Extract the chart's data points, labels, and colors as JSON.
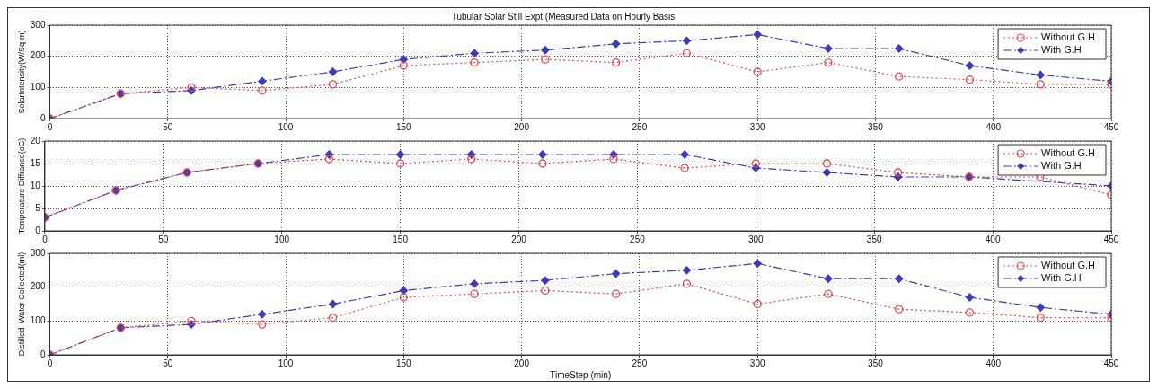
{
  "chart_data": [
    {
      "type": "line",
      "title": "Tubular Solar Still Expt.(Measured Data on Hourly Basis",
      "ylabel": "SolarIntensity(W/Sq-m)",
      "x": [
        0,
        30,
        60,
        90,
        120,
        150,
        180,
        210,
        240,
        270,
        300,
        330,
        360,
        390,
        420,
        450
      ],
      "xlim": [
        0,
        450
      ],
      "xticks": [
        0,
        50,
        100,
        150,
        200,
        250,
        300,
        350,
        400,
        450
      ],
      "ylim": [
        0,
        300
      ],
      "yticks": [
        0,
        100,
        200,
        300
      ],
      "grid": true,
      "legend": "top right",
      "series": [
        {
          "name": "Without G.H",
          "color": "#e8474a",
          "marker": "circle",
          "line_style": "dotted",
          "values": [
            0,
            80,
            100,
            90,
            110,
            170,
            180,
            190,
            180,
            210,
            150,
            180,
            135,
            125,
            110,
            110
          ]
        },
        {
          "name": "With G.H",
          "color": "#3c3cb4",
          "marker": "diamond",
          "line_style": "dashed",
          "values": [
            0,
            80,
            90,
            120,
            150,
            190,
            210,
            220,
            240,
            250,
            270,
            225,
            225,
            170,
            140,
            120
          ]
        }
      ]
    },
    {
      "type": "line",
      "ylabel": "Temperature Diffrance(oC)",
      "x": [
        0,
        30,
        60,
        90,
        120,
        150,
        180,
        210,
        240,
        270,
        300,
        330,
        360,
        390,
        420,
        450
      ],
      "xlim": [
        0,
        450
      ],
      "xticks": [
        0,
        50,
        100,
        150,
        200,
        250,
        300,
        350,
        400,
        450
      ],
      "ylim": [
        0,
        20
      ],
      "yticks": [
        0,
        5,
        10,
        15,
        20
      ],
      "grid": true,
      "legend": "top right",
      "series": [
        {
          "name": "Without G.H",
          "color": "#e8474a",
          "marker": "circle",
          "line_style": "dotted",
          "values": [
            3,
            9,
            13,
            15,
            16,
            15,
            16,
            15,
            16,
            14,
            15,
            15,
            13,
            12,
            12,
            8
          ]
        },
        {
          "name": "With G.H",
          "color": "#3c3cb4",
          "marker": "diamond",
          "line_style": "dashed",
          "values": [
            3,
            9,
            13,
            15,
            17,
            17,
            17,
            17,
            17,
            17,
            14,
            13,
            12,
            12,
            null,
            10
          ]
        }
      ]
    },
    {
      "type": "line",
      "ylabel": "Distilled  Water Collected(ml)",
      "xlabel": "TimeStep (min)",
      "x": [
        0,
        30,
        60,
        90,
        120,
        150,
        180,
        210,
        240,
        270,
        300,
        330,
        360,
        390,
        420,
        450
      ],
      "xlim": [
        0,
        450
      ],
      "xticks": [
        0,
        50,
        100,
        150,
        200,
        250,
        300,
        350,
        400,
        450
      ],
      "ylim": [
        0,
        300
      ],
      "yticks": [
        0,
        100,
        200,
        300
      ],
      "grid": true,
      "legend": "top right",
      "series": [
        {
          "name": "Without G.H",
          "color": "#e8474a",
          "marker": "circle",
          "line_style": "dotted",
          "values": [
            0,
            80,
            100,
            90,
            110,
            170,
            180,
            190,
            180,
            210,
            150,
            180,
            135,
            125,
            110,
            110
          ]
        },
        {
          "name": "With G.H",
          "color": "#3c3cb4",
          "marker": "diamond",
          "line_style": "dashed",
          "values": [
            0,
            80,
            90,
            120,
            150,
            190,
            210,
            220,
            240,
            250,
            270,
            225,
            225,
            170,
            140,
            120
          ]
        }
      ]
    }
  ]
}
